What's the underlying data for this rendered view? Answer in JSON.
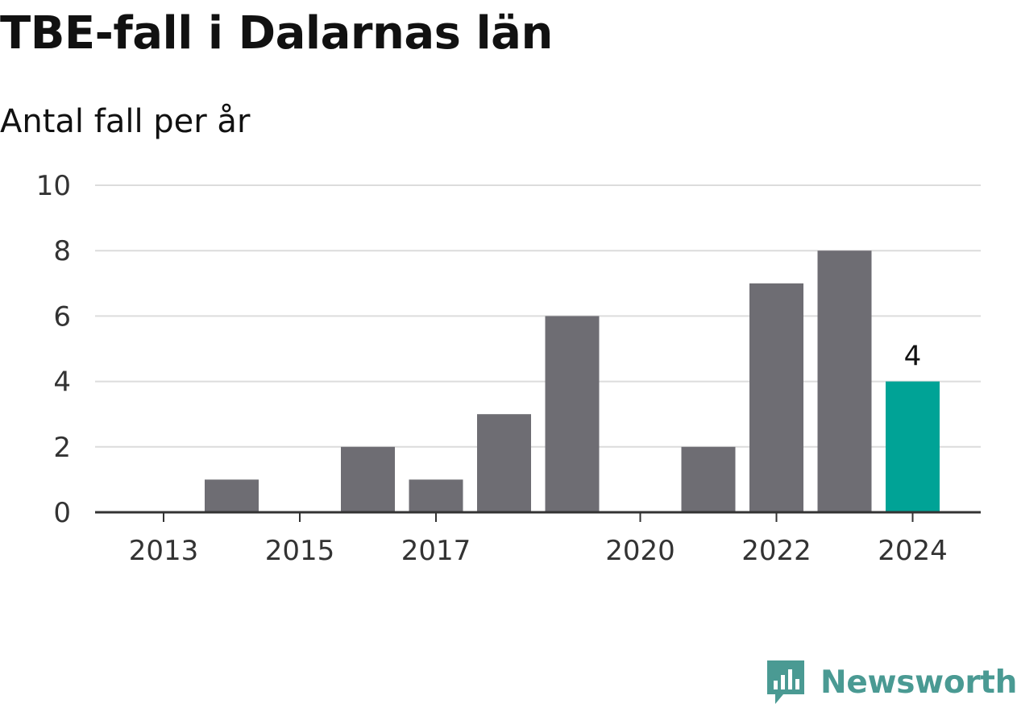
{
  "header": {
    "title": "TBE-fall i Dalarnas län",
    "subtitle": "Antal fall per år"
  },
  "brand": {
    "name": "Newsworthy",
    "icon": "newsworthy-logo-icon",
    "color": "#4a9a93"
  },
  "colors": {
    "bar": "#6e6d73",
    "highlight": "#00a396",
    "grid": "#dcdcdc",
    "axis": "#333333",
    "tick_text": "#333333"
  },
  "chart_data": {
    "type": "bar",
    "categories": [
      "2013",
      "2014",
      "2015",
      "2016",
      "2017",
      "2018",
      "2019",
      "2020",
      "2021",
      "2022",
      "2023",
      "2024"
    ],
    "values": [
      0,
      1,
      0,
      2,
      1,
      3,
      6,
      0,
      2,
      7,
      8,
      4
    ],
    "highlight_index": 11,
    "highlight_label": "4",
    "x_tick_labels": [
      "2013",
      "2015",
      "2017",
      "2020",
      "2022",
      "2024"
    ],
    "y_ticks": [
      "0",
      "2",
      "4",
      "6",
      "8",
      "10"
    ],
    "ylim": [
      0,
      10
    ],
    "grid": true,
    "title": "TBE-fall i Dalarnas län",
    "subtitle": "Antal fall per år",
    "xlabel": "",
    "ylabel": ""
  }
}
